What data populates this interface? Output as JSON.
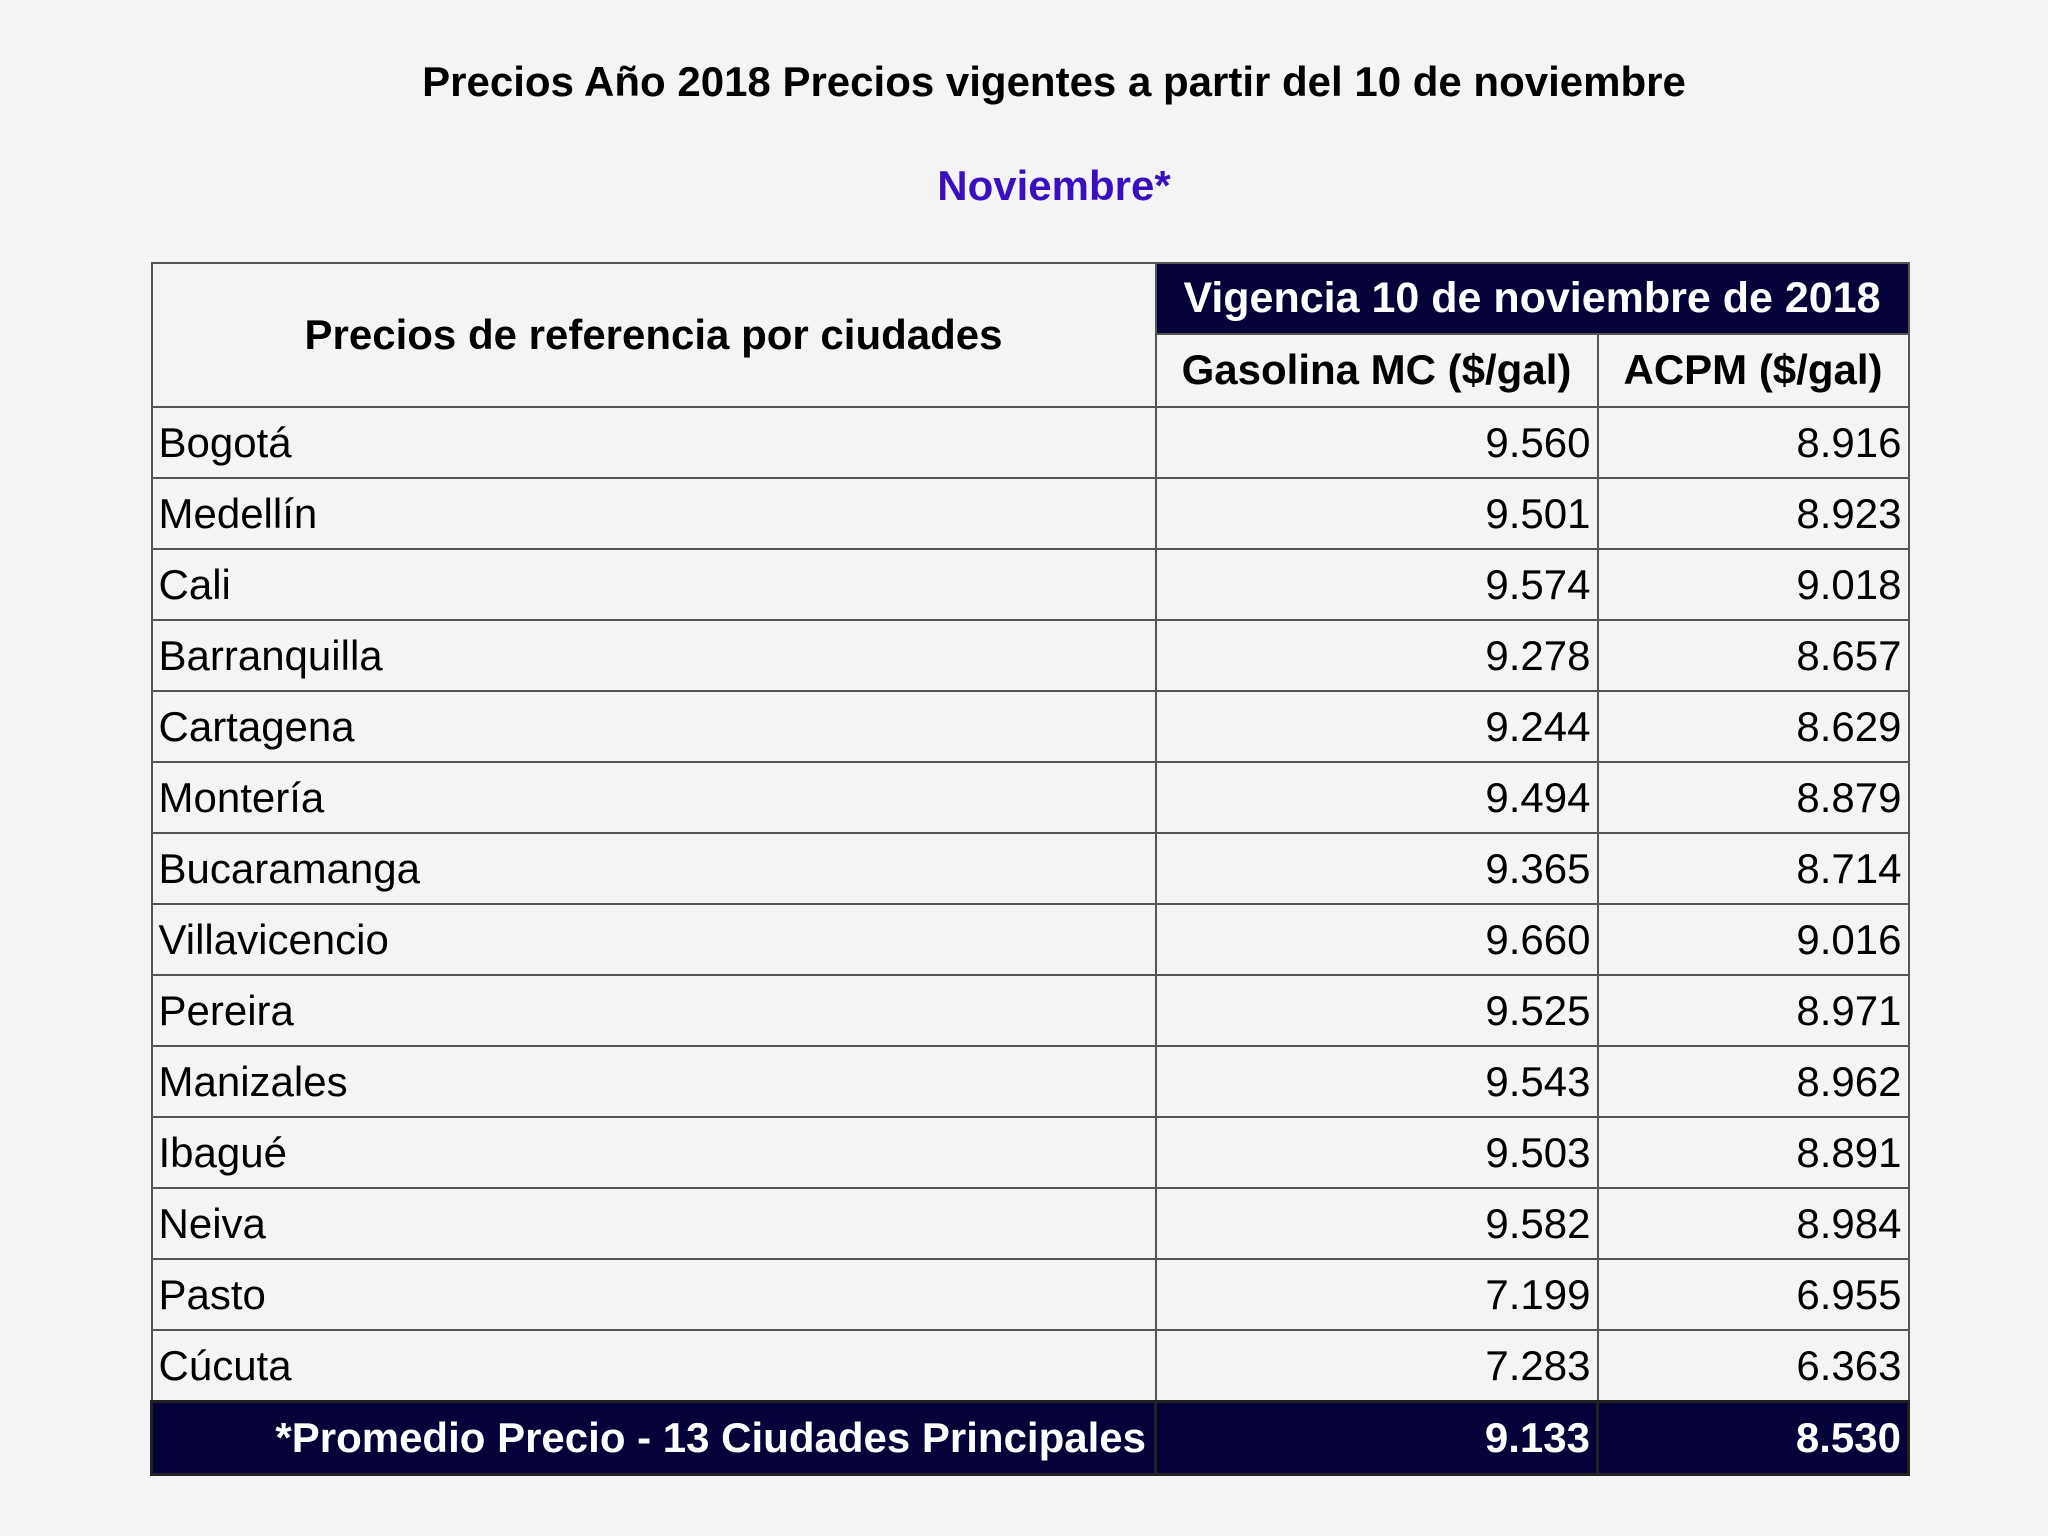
{
  "header": {
    "title": "Precios Año 2018 Precios vigentes a partir del 10 de noviembre",
    "month": "Noviembre*"
  },
  "table": {
    "city_header": "Precios de referencia por ciudades",
    "vigencia_header": "Vigencia 10 de noviembre de 2018",
    "gas_header": "Gasolina MC ($/gal)",
    "acpm_header": "ACPM ($/gal)",
    "rows": [
      {
        "city": "Bogotá",
        "gas": "9.560",
        "acpm": "8.916"
      },
      {
        "city": "Medellín",
        "gas": "9.501",
        "acpm": "8.923"
      },
      {
        "city": "Cali",
        "gas": "9.574",
        "acpm": "9.018"
      },
      {
        "city": "Barranquilla",
        "gas": "9.278",
        "acpm": "8.657"
      },
      {
        "city": "Cartagena",
        "gas": "9.244",
        "acpm": "8.629"
      },
      {
        "city": "Montería",
        "gas": "9.494",
        "acpm": "8.879"
      },
      {
        "city": "Bucaramanga",
        "gas": "9.365",
        "acpm": "8.714"
      },
      {
        "city": "Villavicencio",
        "gas": "9.660",
        "acpm": "9.016"
      },
      {
        "city": "Pereira",
        "gas": "9.525",
        "acpm": "8.971"
      },
      {
        "city": "Manizales",
        "gas": "9.543",
        "acpm": "8.962"
      },
      {
        "city": "Ibagué",
        "gas": "9.503",
        "acpm": "8.891"
      },
      {
        "city": "Neiva",
        "gas": "9.582",
        "acpm": "8.984"
      },
      {
        "city": "Pasto",
        "gas": "7.199",
        "acpm": "6.955"
      },
      {
        "city": "Cúcuta",
        "gas": "7.283",
        "acpm": "6.363"
      }
    ],
    "average": {
      "label": "*Promedio Precio - 13 Ciudades Principales",
      "gas": "9.133",
      "acpm": "8.530"
    }
  }
}
